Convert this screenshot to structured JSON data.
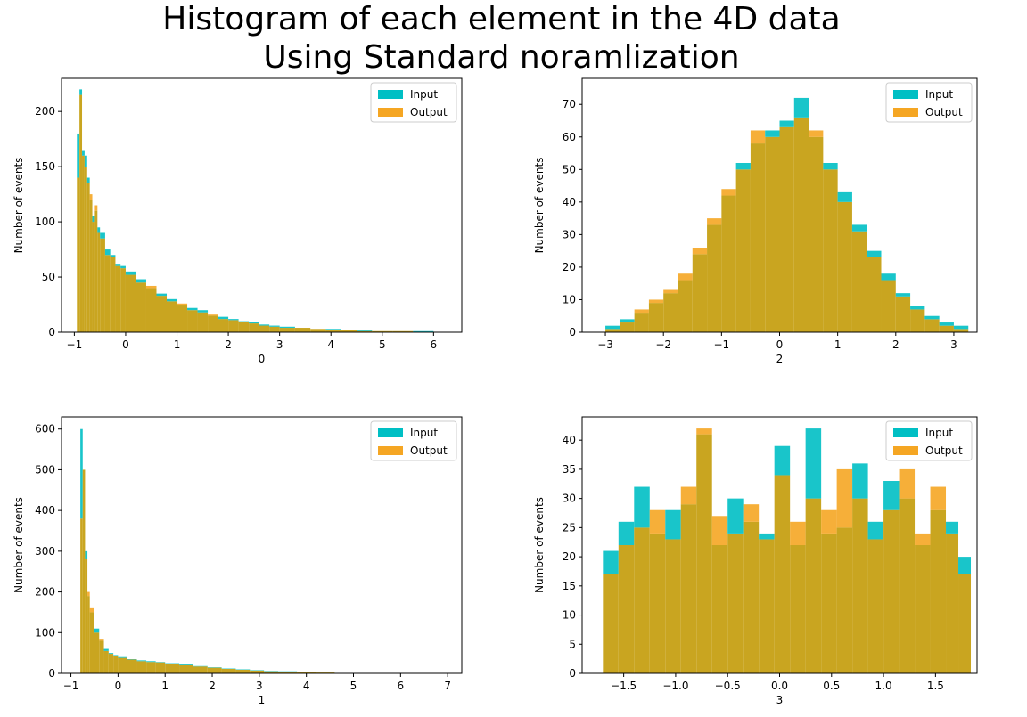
{
  "figure": {
    "title_line1": "Histogram of each element in the 4D data",
    "title_line2": "Using Standard noramlization"
  },
  "colors": {
    "input": "#00BFC4",
    "output": "#F5A623",
    "overlap": "#C9A520"
  },
  "chart_data": [
    {
      "type": "bar",
      "title": "",
      "xlabel": "0",
      "ylabel": "Number of events",
      "xlim": [
        -1.25,
        6.55
      ],
      "ylim": [
        0,
        230
      ],
      "xticks": [
        -1,
        0,
        1,
        2,
        3,
        4,
        5,
        6
      ],
      "yticks": [
        0,
        50,
        100,
        150,
        200
      ],
      "legend": {
        "position": "top-right",
        "entries": [
          "Input",
          "Output"
        ]
      },
      "series": [
        {
          "name": "Input",
          "x": [
            -0.95,
            -0.9,
            -0.85,
            -0.8,
            -0.75,
            -0.7,
            -0.65,
            -0.6,
            -0.55,
            -0.5,
            -0.4,
            -0.3,
            -0.2,
            -0.1,
            0,
            0.2,
            0.4,
            0.6,
            0.8,
            1,
            1.2,
            1.4,
            1.6,
            1.8,
            2,
            2.2,
            2.4,
            2.6,
            2.8,
            3,
            3.3,
            3.6,
            3.9,
            4.2,
            4.5,
            4.8,
            5.2,
            5.6,
            6.0,
            6.2
          ],
          "values": [
            180,
            220,
            165,
            160,
            140,
            120,
            105,
            110,
            95,
            90,
            75,
            70,
            62,
            60,
            55,
            48,
            40,
            35,
            30,
            25,
            22,
            20,
            15,
            14,
            12,
            10,
            9,
            7,
            6,
            5,
            4,
            3,
            3,
            2,
            2,
            1,
            1,
            1,
            0,
            0
          ]
        },
        {
          "name": "Output",
          "x": [
            -0.95,
            -0.9,
            -0.85,
            -0.8,
            -0.75,
            -0.7,
            -0.65,
            -0.6,
            -0.55,
            -0.5,
            -0.4,
            -0.3,
            -0.2,
            -0.1,
            0,
            0.2,
            0.4,
            0.6,
            0.8,
            1,
            1.2,
            1.4,
            1.6,
            1.8,
            2,
            2.2,
            2.4,
            2.6,
            2.8,
            3,
            3.3,
            3.6,
            3.9,
            4.2,
            4.5,
            4.8,
            5.2,
            5.6,
            6.0,
            6.2
          ],
          "values": [
            140,
            215,
            160,
            150,
            135,
            125,
            100,
            115,
            90,
            85,
            70,
            68,
            60,
            58,
            52,
            45,
            42,
            33,
            28,
            26,
            20,
            18,
            16,
            12,
            11,
            9,
            8,
            6,
            5,
            4,
            4,
            3,
            2,
            2,
            1,
            1,
            1,
            0,
            0,
            0
          ]
        }
      ]
    },
    {
      "type": "bar",
      "title": "",
      "xlabel": "2",
      "ylabel": "Number of events",
      "xlim": [
        -3.4,
        3.4
      ],
      "ylim": [
        0,
        78
      ],
      "xticks": [
        -3,
        -2,
        -1,
        0,
        1,
        2,
        3
      ],
      "yticks": [
        0,
        10,
        20,
        30,
        40,
        50,
        60,
        70
      ],
      "legend": {
        "position": "top-right",
        "entries": [
          "Input",
          "Output"
        ]
      },
      "series": [
        {
          "name": "Input",
          "x": [
            -3.0,
            -2.75,
            -2.5,
            -2.25,
            -2.0,
            -1.75,
            -1.5,
            -1.25,
            -1.0,
            -0.75,
            -0.5,
            -0.25,
            0.0,
            0.25,
            0.5,
            0.75,
            1.0,
            1.25,
            1.5,
            1.75,
            2.0,
            2.25,
            2.5,
            2.75,
            3.0
          ],
          "values": [
            2,
            4,
            6,
            9,
            12,
            16,
            24,
            33,
            42,
            52,
            58,
            62,
            65,
            72,
            60,
            52,
            43,
            33,
            25,
            18,
            12,
            8,
            5,
            3,
            2
          ]
        },
        {
          "name": "Output",
          "x": [
            -3.0,
            -2.75,
            -2.5,
            -2.25,
            -2.0,
            -1.75,
            -1.5,
            -1.25,
            -1.0,
            -0.75,
            -0.5,
            -0.25,
            0.0,
            0.25,
            0.5,
            0.75,
            1.0,
            1.25,
            1.5,
            1.75,
            2.0,
            2.25,
            2.5,
            2.75,
            3.0
          ],
          "values": [
            1,
            3,
            7,
            10,
            13,
            18,
            26,
            35,
            44,
            50,
            62,
            60,
            63,
            66,
            62,
            50,
            40,
            31,
            23,
            16,
            11,
            7,
            4,
            2,
            1
          ]
        }
      ]
    },
    {
      "type": "bar",
      "title": "",
      "xlabel": "1",
      "ylabel": "Number of events",
      "xlim": [
        -1.2,
        7.3
      ],
      "ylim": [
        0,
        630
      ],
      "xticks": [
        -1,
        0,
        1,
        2,
        3,
        4,
        5,
        6,
        7
      ],
      "yticks": [
        0,
        100,
        200,
        300,
        400,
        500,
        600
      ],
      "legend": {
        "position": "top-right",
        "entries": [
          "Input",
          "Output"
        ]
      },
      "series": [
        {
          "name": "Input",
          "x": [
            -0.8,
            -0.75,
            -0.7,
            -0.65,
            -0.6,
            -0.5,
            -0.4,
            -0.3,
            -0.2,
            -0.1,
            0,
            0.2,
            0.4,
            0.6,
            0.8,
            1.0,
            1.3,
            1.6,
            1.9,
            2.2,
            2.5,
            2.8,
            3.1,
            3.4,
            3.8,
            4.2,
            4.6
          ],
          "values": [
            600,
            500,
            300,
            190,
            150,
            110,
            80,
            60,
            50,
            45,
            40,
            35,
            32,
            30,
            28,
            25,
            22,
            18,
            15,
            12,
            10,
            8,
            6,
            5,
            3,
            2,
            1
          ]
        },
        {
          "name": "Output",
          "x": [
            -0.8,
            -0.75,
            -0.7,
            -0.65,
            -0.6,
            -0.5,
            -0.4,
            -0.3,
            -0.2,
            -0.1,
            0,
            0.2,
            0.4,
            0.6,
            0.8,
            1.0,
            1.3,
            1.6,
            1.9,
            2.2,
            2.5,
            2.8,
            3.1,
            3.4,
            3.8,
            4.2,
            4.6
          ],
          "values": [
            380,
            500,
            280,
            200,
            160,
            100,
            85,
            55,
            48,
            42,
            38,
            34,
            30,
            28,
            27,
            24,
            20,
            17,
            14,
            11,
            9,
            7,
            5,
            4,
            3,
            2,
            1
          ]
        }
      ]
    },
    {
      "type": "bar",
      "title": "",
      "xlabel": "3",
      "ylabel": "Number of events",
      "xlim": [
        -1.9,
        1.9
      ],
      "ylim": [
        0,
        44
      ],
      "xticks": [
        -1.5,
        -1.0,
        -0.5,
        0.0,
        0.5,
        1.0,
        1.5
      ],
      "yticks": [
        0,
        5,
        10,
        15,
        20,
        25,
        30,
        35,
        40
      ],
      "legend": {
        "position": "top-right",
        "entries": [
          "Input",
          "Output"
        ]
      },
      "series": [
        {
          "name": "Input",
          "x": [
            -1.7,
            -1.55,
            -1.4,
            -1.25,
            -1.1,
            -0.95,
            -0.8,
            -0.65,
            -0.5,
            -0.35,
            -0.2,
            -0.05,
            0.1,
            0.25,
            0.4,
            0.55,
            0.7,
            0.85,
            1.0,
            1.15,
            1.3,
            1.45,
            1.6,
            1.72
          ],
          "values": [
            21,
            26,
            32,
            24,
            28,
            29,
            41,
            22,
            30,
            26,
            24,
            39,
            22,
            42,
            24,
            25,
            36,
            26,
            33,
            30,
            22,
            28,
            26,
            20
          ]
        },
        {
          "name": "Output",
          "x": [
            -1.7,
            -1.55,
            -1.4,
            -1.25,
            -1.1,
            -0.95,
            -0.8,
            -0.65,
            -0.5,
            -0.35,
            -0.2,
            -0.05,
            0.1,
            0.25,
            0.4,
            0.55,
            0.7,
            0.85,
            1.0,
            1.15,
            1.3,
            1.45,
            1.6,
            1.72
          ],
          "values": [
            17,
            22,
            25,
            28,
            23,
            32,
            42,
            27,
            24,
            29,
            23,
            34,
            26,
            30,
            28,
            35,
            30,
            23,
            28,
            35,
            24,
            32,
            24,
            17
          ]
        }
      ]
    }
  ]
}
